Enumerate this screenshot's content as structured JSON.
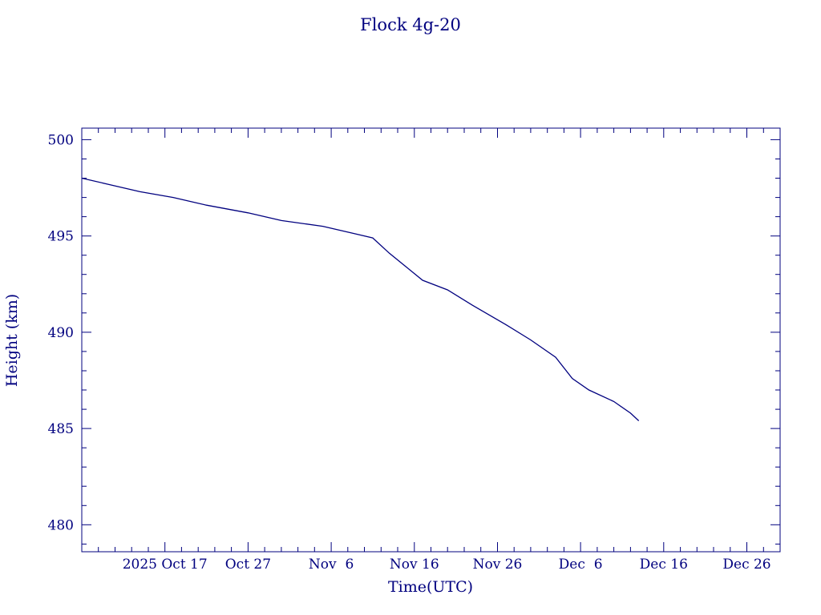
{
  "colors": {
    "ink": "#00007f",
    "background": "#ffffff"
  },
  "chart_data": {
    "type": "line",
    "title": "Flock 4g-20",
    "xlabel": "Time(UTC)",
    "ylabel": "Height (km)",
    "x_tick_labels": [
      "2025 Oct 17",
      "Oct 27",
      "Nov  6",
      "Nov 16",
      "Nov 26",
      "Dec  6",
      "Dec 16",
      "Dec 26"
    ],
    "x_tick_dates": [
      "2025-10-17",
      "2025-10-27",
      "2025-11-06",
      "2025-11-16",
      "2025-11-26",
      "2025-12-06",
      "2025-12-16",
      "2025-12-26"
    ],
    "xlim": [
      "2025-10-07",
      "2025-12-30"
    ],
    "ylim": [
      478.6,
      500.6
    ],
    "y_ticks": [
      480,
      485,
      490,
      495,
      500
    ],
    "grid": false,
    "series": [
      {
        "x": [
          "2025-10-07",
          "2025-10-10",
          "2025-10-14",
          "2025-10-18",
          "2025-10-22",
          "2025-10-27",
          "2025-10-31",
          "2025-11-05",
          "2025-11-09",
          "2025-11-11",
          "2025-11-13",
          "2025-11-15",
          "2025-11-17",
          "2025-11-20",
          "2025-11-23",
          "2025-11-27",
          "2025-11-30",
          "2025-12-03",
          "2025-12-05",
          "2025-12-07",
          "2025-12-10",
          "2025-12-12",
          "2025-12-13"
        ],
        "y": [
          498.0,
          497.7,
          497.3,
          497.0,
          496.6,
          496.2,
          495.8,
          495.5,
          495.1,
          494.9,
          494.1,
          493.4,
          492.7,
          492.2,
          491.4,
          490.4,
          489.6,
          488.7,
          487.6,
          487.0,
          486.4,
          485.8,
          485.4
        ]
      }
    ]
  }
}
